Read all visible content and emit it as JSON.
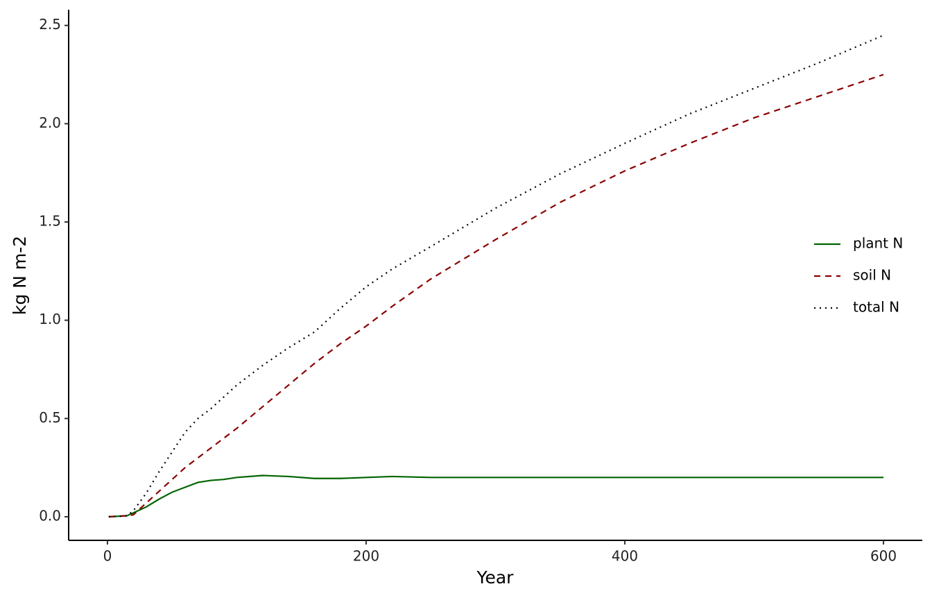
{
  "chart_data": {
    "type": "line",
    "xlabel": "Year",
    "ylabel": "kg N m-2",
    "xlim": [
      -30,
      630
    ],
    "ylim": [
      -0.12,
      2.58
    ],
    "xticks": [
      0,
      200,
      400,
      600
    ],
    "yticks": [
      {
        "value": 0,
        "label": "0.0"
      },
      {
        "value": 0.5,
        "label": "0.5"
      },
      {
        "value": 1,
        "label": "1.0"
      },
      {
        "value": 1.5,
        "label": "1.5"
      },
      {
        "value": 2,
        "label": "2.0"
      },
      {
        "value": 2.5,
        "label": "2.5"
      }
    ],
    "legend": "right",
    "x": [
      1,
      15,
      20,
      30,
      40,
      50,
      60,
      70,
      80,
      90,
      100,
      120,
      140,
      160,
      180,
      200,
      220,
      250,
      300,
      350,
      400,
      450,
      500,
      550,
      600
    ],
    "series": [
      {
        "name": "plant N",
        "color": "#006400",
        "dash": "solid",
        "values": [
          0,
          0.005,
          0.02,
          0.05,
          0.09,
          0.125,
          0.15,
          0.175,
          0.185,
          0.19,
          0.2,
          0.21,
          0.205,
          0.195,
          0.195,
          0.2,
          0.205,
          0.2,
          0.2,
          0.2,
          0.2,
          0.2,
          0.2,
          0.2,
          0.2
        ]
      },
      {
        "name": "soil N",
        "color": "#8b0000",
        "dash": "dashed",
        "values": [
          0,
          0.005,
          0.01,
          0.07,
          0.13,
          0.19,
          0.25,
          0.3,
          0.35,
          0.4,
          0.45,
          0.56,
          0.67,
          0.78,
          0.88,
          0.97,
          1.07,
          1.21,
          1.41,
          1.6,
          1.76,
          1.9,
          2.03,
          2.14,
          2.25
        ]
      },
      {
        "name": "total N",
        "color": "#000000",
        "dash": "dotted",
        "values": [
          0,
          0.005,
          0.03,
          0.12,
          0.23,
          0.33,
          0.43,
          0.5,
          0.55,
          0.61,
          0.67,
          0.77,
          0.86,
          0.94,
          1.06,
          1.17,
          1.26,
          1.375,
          1.57,
          1.745,
          1.9,
          2.05,
          2.18,
          2.31,
          2.45
        ]
      }
    ]
  }
}
